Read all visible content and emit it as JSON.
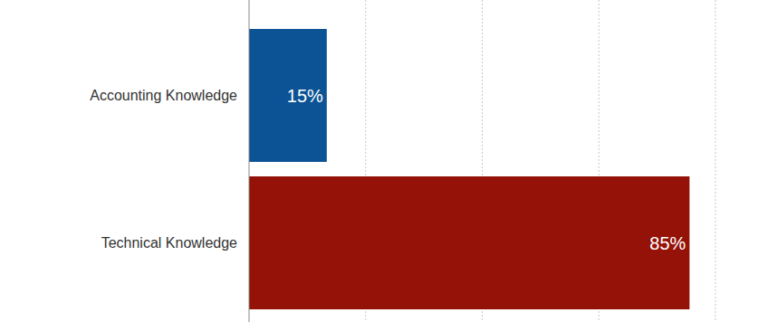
{
  "chart_data": {
    "type": "bar",
    "orientation": "horizontal",
    "categories": [
      "Accounting Knowledge",
      "Technical Knowledge"
    ],
    "values": [
      15,
      85
    ],
    "value_labels": [
      "15%",
      "85%"
    ],
    "colors": [
      "#0b5394",
      "#951208"
    ],
    "xlim": [
      0,
      90
    ],
    "xticks": [
      0,
      22.5,
      45,
      67.5,
      90
    ],
    "grid": true,
    "data_labels": true,
    "tick_labels": false
  }
}
